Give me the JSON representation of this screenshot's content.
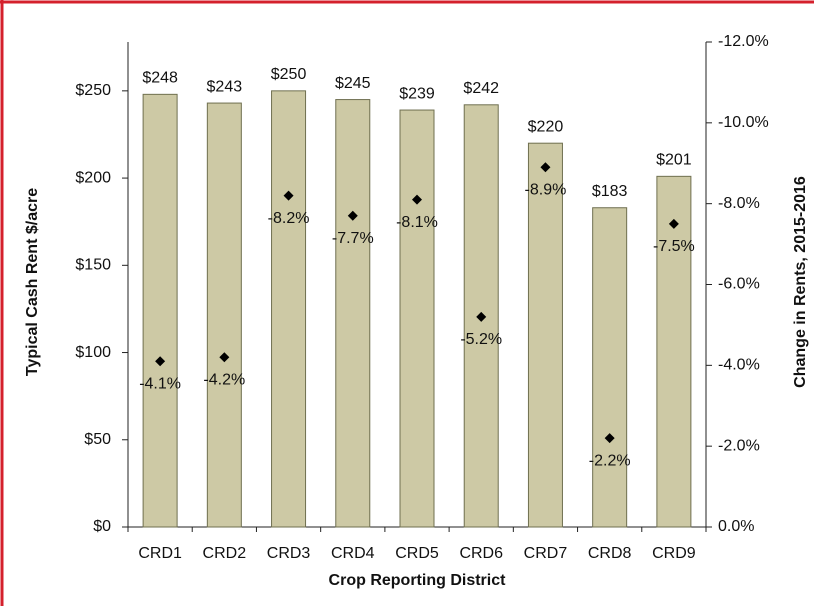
{
  "chart_data": {
    "type": "bar",
    "x_label": "Crop Reporting District",
    "y_label": "Typical Cash Rent $/acre",
    "y2_label": "Change in Rents, 2015-2016",
    "categories": [
      "CRD1",
      "CRD2",
      "CRD3",
      "CRD4",
      "CRD5",
      "CRD6",
      "CRD7",
      "CRD8",
      "CRD9"
    ],
    "series": [
      {
        "type": "bar",
        "color": "#cdc9a5",
        "values": [
          248,
          243,
          250,
          245,
          239,
          242,
          220,
          183,
          201
        ],
        "value_labels": [
          "$248",
          "$243",
          "$250",
          "$245",
          "$239",
          "$242",
          "$220",
          "$183",
          "$201"
        ]
      },
      {
        "type": "scatter",
        "axis": "y2",
        "color": "#000000",
        "values": [
          -4.1,
          -4.2,
          -8.2,
          -7.7,
          -8.1,
          -5.2,
          -8.9,
          -2.2,
          -7.5
        ],
        "value_labels": [
          "-4.1%",
          "-4.2%",
          "-8.2%",
          "-7.7%",
          "-8.1%",
          "-5.2%",
          "-8.9%",
          "-2.2%",
          "-7.5%"
        ]
      }
    ],
    "ylim": [
      0,
      278
    ],
    "yticks": [
      {
        "value": 0,
        "label": "$0"
      },
      {
        "value": 50,
        "label": "$50"
      },
      {
        "value": 100,
        "label": "$100"
      },
      {
        "value": 150,
        "label": "$150"
      },
      {
        "value": 200,
        "label": "$200"
      },
      {
        "value": 250,
        "label": "$250"
      }
    ],
    "y2lim": [
      0,
      -12
    ],
    "y2ticks": [
      {
        "value": 0,
        "label": "0.0%"
      },
      {
        "value": -2,
        "label": "-2.0%"
      },
      {
        "value": -4,
        "label": "-4.0%"
      },
      {
        "value": -6,
        "label": "-6.0%"
      },
      {
        "value": -8,
        "label": "-8.0%"
      },
      {
        "value": -10,
        "label": "-10.0%"
      },
      {
        "value": -12,
        "label": "-12.0%"
      }
    ]
  }
}
